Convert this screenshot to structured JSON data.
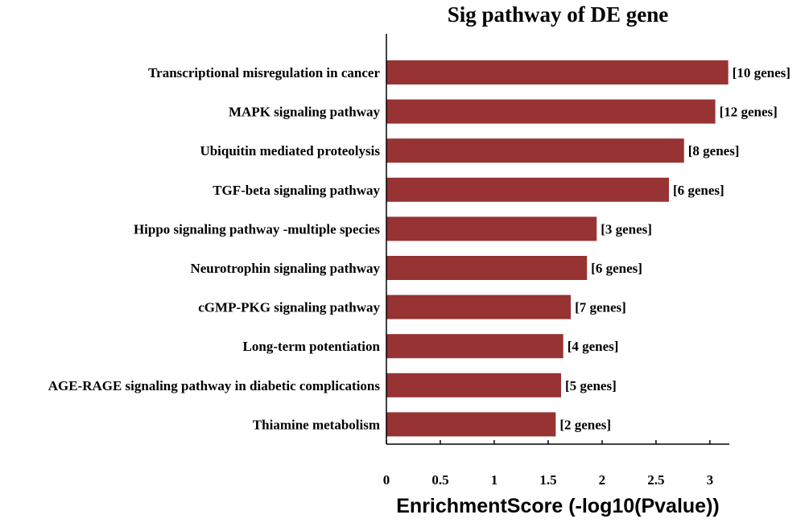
{
  "chart_data": {
    "type": "bar",
    "orientation": "horizontal",
    "title": "Sig pathway of DE gene",
    "xlabel": "EnrichmentScore (-log10(Pvalue))",
    "ylabel": "",
    "xlim": [
      0,
      3.18
    ],
    "xticks": [
      0,
      0.5,
      1,
      1.5,
      2,
      2.5,
      3
    ],
    "xtick_labels": [
      "0",
      "0.5",
      "1",
      "1.5",
      "2",
      "2.5",
      "3"
    ],
    "grid": false,
    "bar_color": "#973333",
    "categories": [
      "Transcriptional misregulation in cancer",
      "MAPK signaling pathway",
      "Ubiquitin mediated proteolysis",
      "TGF-beta signaling pathway",
      "Hippo signaling pathway -multiple species",
      "Neurotrophin signaling pathway",
      "cGMP-PKG signaling pathway",
      "Long-term potentiation",
      "AGE-RAGE signaling pathway in diabetic complications",
      "Thiamine metabolism"
    ],
    "values": [
      3.17,
      3.05,
      2.76,
      2.62,
      1.95,
      1.86,
      1.71,
      1.64,
      1.62,
      1.57
    ],
    "bar_labels": [
      "[10 genes]",
      "[12 genes]",
      "[8 genes]",
      "[6 genes]",
      "[3 genes]",
      "[6 genes]",
      "[7 genes]",
      "[4 genes]",
      "[5 genes]",
      "[2 genes]"
    ]
  }
}
